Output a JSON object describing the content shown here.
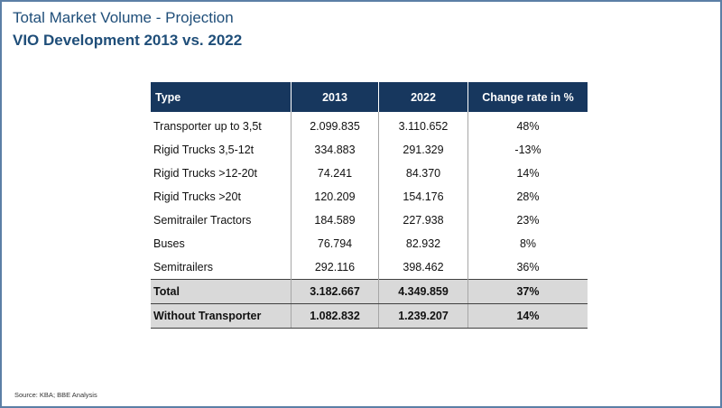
{
  "header": {
    "title": "Total Market Volume - Projection",
    "subtitle": "VIO Development 2013 vs. 2022"
  },
  "table": {
    "columns": [
      "Type",
      "2013",
      "2022",
      "Change rate in %"
    ],
    "rows": [
      {
        "type": "Transporter up to 3,5t",
        "y2013": "2.099.835",
        "y2022": "3.110.652",
        "rate": "48%"
      },
      {
        "type": "Rigid Trucks 3,5-12t",
        "y2013": "334.883",
        "y2022": "291.329",
        "rate": "-13%"
      },
      {
        "type": "Rigid Trucks >12-20t",
        "y2013": "74.241",
        "y2022": "84.370",
        "rate": "14%"
      },
      {
        "type": "Rigid Trucks >20t",
        "y2013": "120.209",
        "y2022": "154.176",
        "rate": "28%"
      },
      {
        "type": "Semitrailer Tractors",
        "y2013": "184.589",
        "y2022": "227.938",
        "rate": "23%"
      },
      {
        "type": "Buses",
        "y2013": "76.794",
        "y2022": "82.932",
        "rate": "8%"
      },
      {
        "type": "Semitrailers",
        "y2013": "292.116",
        "y2022": "398.462",
        "rate": "36%"
      }
    ],
    "totals": [
      {
        "type": "Total",
        "y2013": "3.182.667",
        "y2022": "4.349.859",
        "rate": "37%"
      },
      {
        "type": "Without Transporter",
        "y2013": "1.082.832",
        "y2022": "1.239.207",
        "rate": "14%"
      }
    ]
  },
  "footer": {
    "source": "Source: KBA;  BBE Analysis"
  }
}
